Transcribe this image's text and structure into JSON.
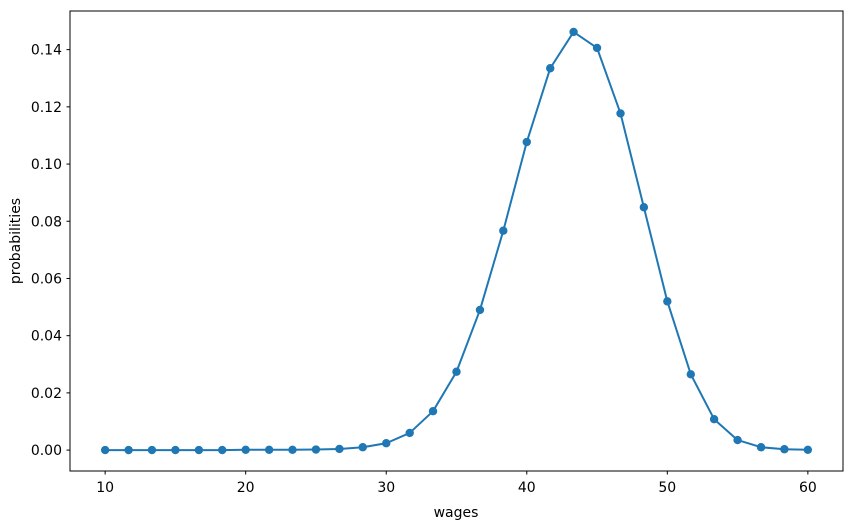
{
  "figure": {
    "background": "#ffffff"
  },
  "chart_data": {
    "type": "line",
    "title": "",
    "xlabel": "wages",
    "ylabel": "probabilities",
    "x": [
      10.0,
      11.67,
      13.33,
      15.0,
      16.67,
      18.33,
      20.0,
      21.67,
      23.33,
      25.0,
      26.67,
      28.33,
      30.0,
      31.67,
      33.33,
      35.0,
      36.67,
      38.33,
      40.0,
      41.67,
      43.33,
      45.0,
      46.67,
      48.33,
      50.0,
      51.67,
      53.33,
      55.0,
      56.67,
      58.33,
      60.0
    ],
    "y": [
      0.0,
      0.0,
      0.0,
      0.0,
      0.0,
      0.0,
      0.0001,
      0.0001,
      0.0001,
      0.0002,
      0.0004,
      0.001,
      0.0024,
      0.006,
      0.0136,
      0.0274,
      0.049,
      0.0767,
      0.1077,
      0.1335,
      0.1462,
      0.1406,
      0.1177,
      0.0849,
      0.052,
      0.0265,
      0.0108,
      0.0035,
      0.001,
      0.0003,
      0.0001
    ],
    "series_name": "probabilities",
    "line_color": "#1f77b4",
    "marker": "circle",
    "marker_color": "#1f77b4",
    "axis_color": "#000000",
    "text_color": "#000000",
    "grid": false,
    "legend": null,
    "xlim": [
      7.5,
      62.5
    ],
    "ylim": [
      -0.00731,
      0.15351
    ],
    "xticks": [
      10,
      20,
      30,
      40,
      50,
      60
    ],
    "xtick_labels": [
      "10",
      "20",
      "30",
      "40",
      "50",
      "60"
    ],
    "yticks": [
      0.0,
      0.02,
      0.04,
      0.06,
      0.08,
      0.1,
      0.12,
      0.14
    ],
    "ytick_labels": [
      "0.00",
      "0.02",
      "0.04",
      "0.06",
      "0.08",
      "0.10",
      "0.12",
      "0.14"
    ]
  }
}
